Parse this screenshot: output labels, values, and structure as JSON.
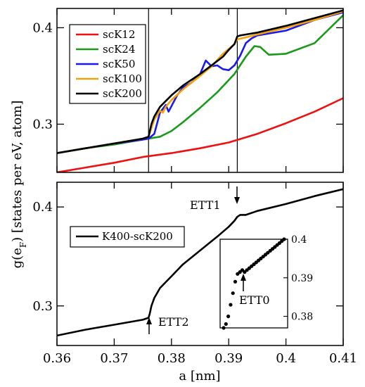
{
  "ylabel": "g(e",
  "ylabel_sub": "F",
  "ylabel_rest": ") [states per eV, atom]",
  "xlabel": "a [nm]",
  "chart_data": [
    {
      "type": "line",
      "title": "",
      "xlim": [
        0.36,
        0.41
      ],
      "ylim": [
        0.25,
        0.42
      ],
      "yticks": [
        "0.3",
        "0.4"
      ],
      "ytick_values": [
        0.3,
        0.4
      ],
      "grid": false,
      "legend_position": "top-left",
      "vlines": [
        0.376,
        0.3915
      ],
      "series": [
        {
          "name": "scK12",
          "color": "#ee1111",
          "x": [
            0.36,
            0.365,
            0.37,
            0.375,
            0.38,
            0.385,
            0.39,
            0.395,
            0.4,
            0.405,
            0.41
          ],
          "y": [
            0.25,
            0.255,
            0.26,
            0.266,
            0.27,
            0.275,
            0.281,
            0.29,
            0.301,
            0.313,
            0.327
          ]
        },
        {
          "name": "scK24",
          "color": "#1a9a1a",
          "x": [
            0.36,
            0.365,
            0.37,
            0.375,
            0.376,
            0.378,
            0.38,
            0.382,
            0.385,
            0.388,
            0.391,
            0.393,
            0.3945,
            0.3955,
            0.397,
            0.4,
            0.405,
            0.41
          ],
          "y": [
            0.27,
            0.275,
            0.279,
            0.284,
            0.285,
            0.287,
            0.293,
            0.302,
            0.317,
            0.333,
            0.352,
            0.37,
            0.381,
            0.38,
            0.372,
            0.373,
            0.384,
            0.413
          ]
        },
        {
          "name": "scK50",
          "color": "#1a1aee",
          "x": [
            0.36,
            0.365,
            0.37,
            0.375,
            0.376,
            0.377,
            0.378,
            0.379,
            0.3795,
            0.381,
            0.382,
            0.3835,
            0.385,
            0.386,
            0.387,
            0.388,
            0.389,
            0.39,
            0.391,
            0.392,
            0.393,
            0.394,
            0.395,
            0.397,
            0.4,
            0.405,
            0.41
          ],
          "y": [
            0.27,
            0.275,
            0.28,
            0.284,
            0.285,
            0.29,
            0.312,
            0.32,
            0.313,
            0.33,
            0.338,
            0.343,
            0.352,
            0.366,
            0.36,
            0.361,
            0.357,
            0.356,
            0.361,
            0.371,
            0.384,
            0.389,
            0.392,
            0.394,
            0.397,
            0.408,
            0.416
          ]
        },
        {
          "name": "scK100",
          "color": "#f5a20a",
          "x": [
            0.36,
            0.365,
            0.37,
            0.375,
            0.376,
            0.377,
            0.378,
            0.3785,
            0.379,
            0.38,
            0.382,
            0.385,
            0.387,
            0.389,
            0.39,
            0.391,
            0.3915,
            0.393,
            0.395,
            0.4,
            0.405,
            0.41
          ],
          "y": [
            0.27,
            0.275,
            0.28,
            0.285,
            0.287,
            0.305,
            0.314,
            0.312,
            0.318,
            0.325,
            0.336,
            0.35,
            0.36,
            0.373,
            0.378,
            0.383,
            0.388,
            0.39,
            0.393,
            0.4,
            0.408,
            0.417
          ]
        },
        {
          "name": "scK200",
          "color": "#000000",
          "x": [
            0.36,
            0.365,
            0.37,
            0.375,
            0.376,
            0.3765,
            0.377,
            0.378,
            0.38,
            0.382,
            0.385,
            0.387,
            0.389,
            0.39,
            0.391,
            0.3915,
            0.392,
            0.395,
            0.4,
            0.405,
            0.41
          ],
          "y": [
            0.27,
            0.275,
            0.28,
            0.285,
            0.287,
            0.3,
            0.308,
            0.318,
            0.33,
            0.34,
            0.352,
            0.361,
            0.37,
            0.377,
            0.383,
            0.391,
            0.392,
            0.395,
            0.402,
            0.41,
            0.418
          ]
        }
      ]
    },
    {
      "type": "line",
      "title": "",
      "xlim": [
        0.36,
        0.41
      ],
      "ylim": [
        0.26,
        0.425
      ],
      "xticks": [
        "0.36",
        "0.37",
        "0.38",
        "0.39",
        "0.4",
        "0.41"
      ],
      "xtick_values": [
        0.36,
        0.37,
        0.38,
        0.39,
        0.4,
        0.41
      ],
      "yticks": [
        "0.3",
        "0.4"
      ],
      "ytick_values": [
        0.3,
        0.4
      ],
      "grid": false,
      "legend_position": "middle-left",
      "series": [
        {
          "name": "K400-scK200",
          "color": "#000000",
          "x": [
            0.36,
            0.365,
            0.37,
            0.375,
            0.376,
            0.3762,
            0.3765,
            0.377,
            0.378,
            0.38,
            0.382,
            0.385,
            0.388,
            0.39,
            0.391,
            0.3915,
            0.392,
            0.393,
            0.395,
            0.4,
            0.405,
            0.41
          ],
          "y": [
            0.27,
            0.276,
            0.281,
            0.286,
            0.288,
            0.292,
            0.3,
            0.308,
            0.318,
            0.33,
            0.342,
            0.356,
            0.37,
            0.38,
            0.386,
            0.39,
            0.392,
            0.392,
            0.396,
            0.403,
            0.411,
            0.418
          ]
        }
      ],
      "annotations": [
        {
          "text": "ETT1",
          "x": 0.3915,
          "y": 0.392
        },
        {
          "text": "ETT2",
          "x": 0.376,
          "y": 0.288
        }
      ],
      "inset": {
        "type": "scatter",
        "ylim": [
          0.377,
          0.4
        ],
        "yticks": [
          "0.38",
          "0.39",
          "0.4"
        ],
        "ytick_values": [
          0.38,
          0.39,
          0.4
        ],
        "points_y": [
          0.377,
          0.378,
          0.38,
          0.383,
          0.386,
          0.389,
          0.391,
          0.3915,
          0.392,
          0.3915,
          0.392,
          0.3925,
          0.393,
          0.3935,
          0.394,
          0.3945,
          0.395,
          0.3955,
          0.396,
          0.3965,
          0.397,
          0.3975,
          0.398,
          0.3985,
          0.399,
          0.3995,
          0.4
        ],
        "annotation": "ETT0"
      }
    }
  ]
}
